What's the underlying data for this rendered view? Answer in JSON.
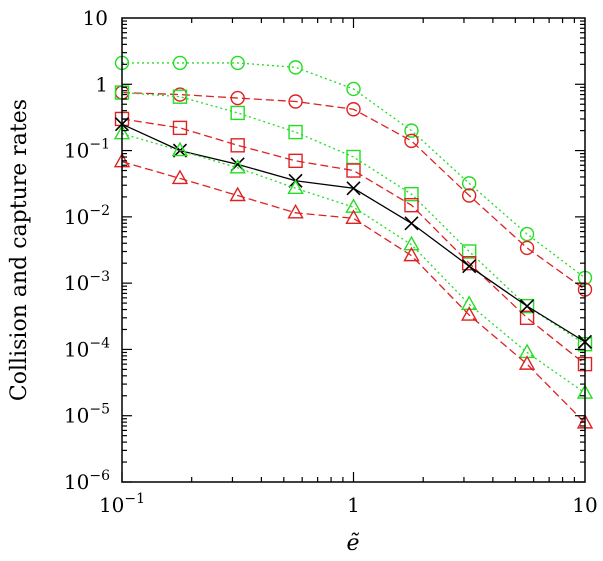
{
  "chart_data": {
    "type": "line",
    "title": "",
    "xlabel": "ẽ",
    "ylabel": "Collision and capture rates",
    "xscale": "log",
    "yscale": "log",
    "xlim": [
      0.1,
      10
    ],
    "ylim": [
      1e-06,
      10
    ],
    "grid": false,
    "x_ticks": [
      {
        "value": 0.1,
        "base": "10",
        "exp": "−1"
      },
      {
        "value": 1,
        "base": "1",
        "exp": ""
      },
      {
        "value": 10,
        "base": "10",
        "exp": ""
      }
    ],
    "y_ticks": [
      {
        "value": 10,
        "base": "10",
        "exp": ""
      },
      {
        "value": 1,
        "base": "1",
        "exp": ""
      },
      {
        "value": 0.1,
        "base": "10",
        "exp": "−1"
      },
      {
        "value": 0.01,
        "base": "10",
        "exp": "−2"
      },
      {
        "value": 0.001,
        "base": "10",
        "exp": "−3"
      },
      {
        "value": 0.0001,
        "base": "10",
        "exp": "−4"
      },
      {
        "value": 1e-05,
        "base": "10",
        "exp": "−5"
      },
      {
        "value": 1e-06,
        "base": "10",
        "exp": "−6"
      }
    ],
    "x": [
      0.1,
      0.178,
      0.316,
      0.562,
      1.0,
      1.78,
      3.16,
      5.62,
      10.0
    ],
    "series": [
      {
        "name": "green-circles",
        "color": "#22dd22",
        "marker": "circle",
        "dash": "dotted",
        "values": [
          2.1,
          2.1,
          2.1,
          1.8,
          0.85,
          0.2,
          0.032,
          0.0055,
          0.0012
        ]
      },
      {
        "name": "red-circles",
        "color": "#dd2222",
        "marker": "circle",
        "dash": "dashed",
        "values": [
          0.75,
          0.7,
          0.62,
          0.55,
          0.42,
          0.14,
          0.021,
          0.0034,
          0.0008
        ]
      },
      {
        "name": "green-squares",
        "color": "#22dd22",
        "marker": "square",
        "dash": "dotted",
        "values": [
          0.75,
          0.65,
          0.37,
          0.19,
          0.08,
          0.022,
          0.003,
          0.00045,
          0.00012
        ]
      },
      {
        "name": "red-squares",
        "color": "#dd2222",
        "marker": "square",
        "dash": "dashed",
        "values": [
          0.3,
          0.22,
          0.12,
          0.07,
          0.05,
          0.015,
          0.002,
          0.0003,
          6e-05
        ]
      },
      {
        "name": "black-crosses",
        "color": "#000000",
        "marker": "cross",
        "dash": "solid",
        "values": [
          0.25,
          0.1,
          0.062,
          0.035,
          0.027,
          0.008,
          0.0018,
          0.00045,
          0.00013
        ]
      },
      {
        "name": "green-triangles",
        "color": "#22dd22",
        "marker": "triangle",
        "dash": "dotted",
        "values": [
          0.18,
          0.1,
          0.055,
          0.027,
          0.014,
          0.0038,
          0.00048,
          9e-05,
          2.2e-05
        ]
      },
      {
        "name": "red-triangles",
        "color": "#dd2222",
        "marker": "triangle",
        "dash": "dashed",
        "values": [
          0.068,
          0.038,
          0.021,
          0.0115,
          0.0095,
          0.0026,
          0.00033,
          6e-05,
          7.8e-06
        ]
      }
    ]
  }
}
